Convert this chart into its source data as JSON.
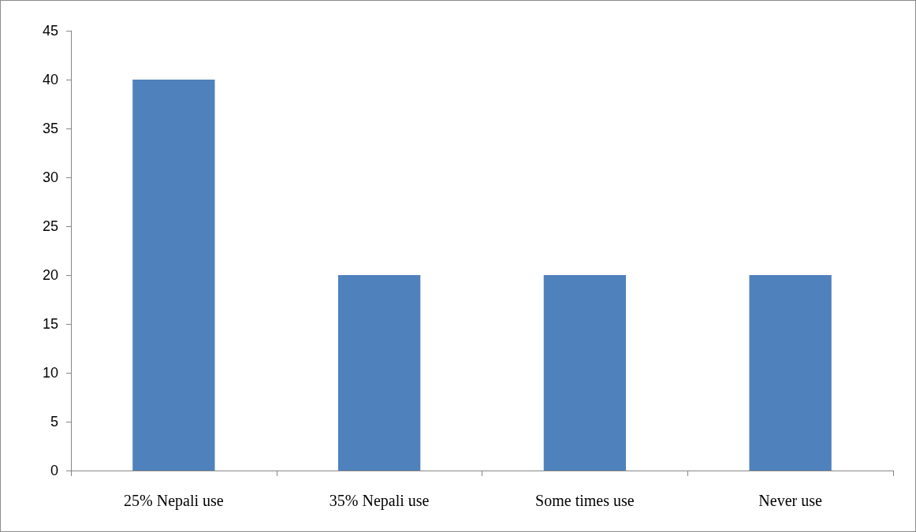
{
  "chart_data": {
    "type": "bar",
    "categories": [
      "25% Nepali use",
      "35% Nepali use",
      "Some times use",
      "Never use"
    ],
    "values": [
      40,
      20,
      20,
      20
    ],
    "color": "#4f81bd",
    "ylim": [
      0,
      45
    ],
    "yticks": [
      0,
      5,
      10,
      15,
      20,
      25,
      30,
      35,
      40,
      45
    ],
    "grid": false
  }
}
